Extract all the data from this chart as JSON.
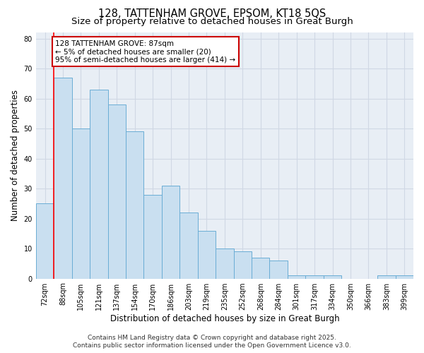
{
  "title_line1": "128, TATTENHAM GROVE, EPSOM, KT18 5QS",
  "title_line2": "Size of property relative to detached houses in Great Burgh",
  "xlabel": "Distribution of detached houses by size in Great Burgh",
  "ylabel": "Number of detached properties",
  "categories": [
    "72sqm",
    "88sqm",
    "105sqm",
    "121sqm",
    "137sqm",
    "154sqm",
    "170sqm",
    "186sqm",
    "203sqm",
    "219sqm",
    "235sqm",
    "252sqm",
    "268sqm",
    "284sqm",
    "301sqm",
    "317sqm",
    "334sqm",
    "350sqm",
    "366sqm",
    "383sqm",
    "399sqm"
  ],
  "values": [
    25,
    67,
    50,
    63,
    58,
    49,
    28,
    31,
    22,
    16,
    10,
    9,
    7,
    6,
    1,
    1,
    1,
    0,
    0,
    1,
    1
  ],
  "bar_color": "#c9dff0",
  "bar_edge_color": "#6aadd5",
  "annotation_text": "128 TATTENHAM GROVE: 87sqm\n← 5% of detached houses are smaller (20)\n95% of semi-detached houses are larger (414) →",
  "annotation_box_facecolor": "#ffffff",
  "annotation_box_edgecolor": "#cc0000",
  "red_line_x": 0.5,
  "ylim": [
    0,
    82
  ],
  "yticks": [
    0,
    10,
    20,
    30,
    40,
    50,
    60,
    70,
    80
  ],
  "grid_color": "#d0d8e4",
  "fig_facecolor": "#ffffff",
  "ax_facecolor": "#e8eef5",
  "footer_line1": "Contains HM Land Registry data © Crown copyright and database right 2025.",
  "footer_line2": "Contains public sector information licensed under the Open Government Licence v3.0.",
  "title_fontsize": 10.5,
  "subtitle_fontsize": 9.5,
  "axis_label_fontsize": 8.5,
  "tick_fontsize": 7,
  "annotation_fontsize": 7.5,
  "footer_fontsize": 6.5
}
